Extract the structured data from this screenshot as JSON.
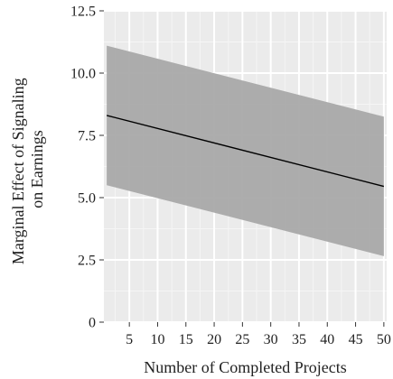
{
  "chart_data": {
    "type": "line",
    "title": "",
    "xlabel": "Number of Completed Projects",
    "ylabel_lines": [
      "Marginal Effect of Signaling",
      "on Earnings"
    ],
    "xlim": [
      0.5,
      50.5
    ],
    "ylim": [
      0,
      12.5
    ],
    "x_ticks": [
      5,
      10,
      15,
      20,
      25,
      30,
      35,
      40,
      45,
      50
    ],
    "x_tick_labels": [
      "5",
      "10",
      "15",
      "20",
      "25",
      "30",
      "35",
      "40",
      "45",
      "50"
    ],
    "y_ticks": [
      0,
      2.5,
      5.0,
      7.5,
      10.0,
      12.5
    ],
    "y_tick_labels": [
      "0",
      "2.5",
      "5.0",
      "7.5",
      "10.0",
      "12.5"
    ],
    "grid": true,
    "series": [
      {
        "type": "line",
        "x": [
          1,
          50
        ],
        "y": [
          8.3,
          5.45
        ]
      }
    ],
    "confidence_band": {
      "x": [
        1,
        50
      ],
      "lower": [
        5.5,
        2.65
      ],
      "upper": [
        11.1,
        8.25
      ]
    }
  },
  "colors": {
    "panel_bg": "#ebebeb",
    "grid_major": "#ffffff",
    "grid_minor": "#f5f5f5",
    "band": "#a9a9a9",
    "line": "#000000",
    "text": "#222222"
  }
}
